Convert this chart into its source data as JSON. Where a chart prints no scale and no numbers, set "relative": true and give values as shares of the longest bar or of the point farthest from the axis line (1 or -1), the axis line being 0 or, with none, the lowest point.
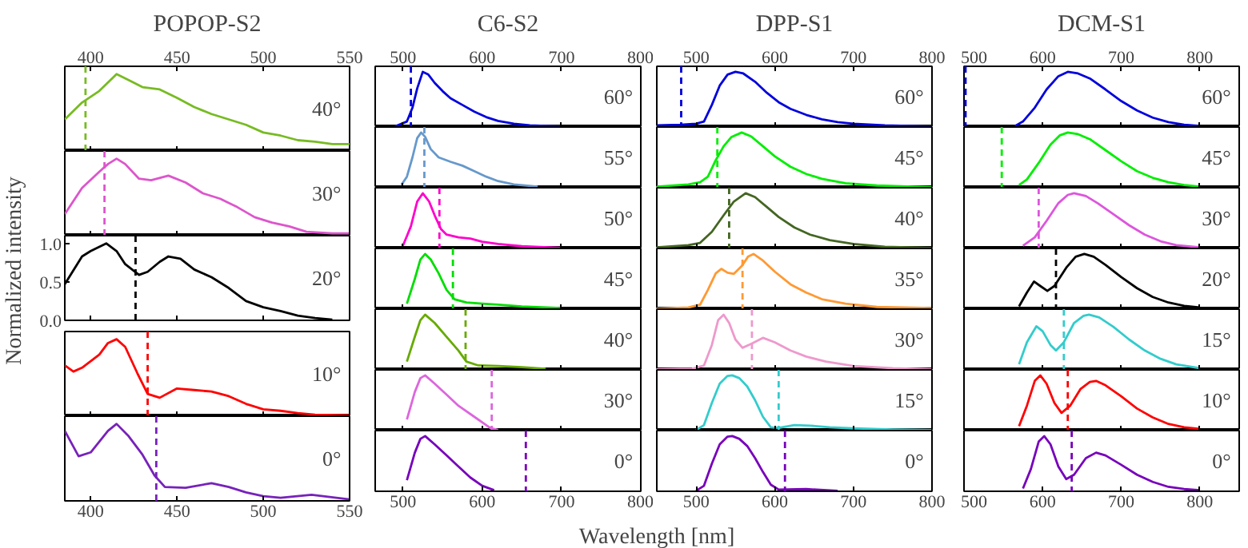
{
  "chart_data": [
    {
      "type": "line",
      "title": "POPOP-S2",
      "relative": true,
      "xlim": [
        385,
        550
      ],
      "xticks": [
        400,
        450,
        500,
        550
      ],
      "annotations": [
        "40°"
      ],
      "x": [
        385,
        395,
        405,
        415,
        422,
        430,
        440,
        450,
        460,
        470,
        480,
        490,
        500,
        510,
        520,
        530,
        540,
        550
      ],
      "series": [
        {
          "color": "#77bb22",
          "values": [
            0.41,
            0.63,
            0.78,
            1.0,
            0.92,
            0.83,
            0.8,
            0.69,
            0.57,
            0.48,
            0.41,
            0.34,
            0.24,
            0.2,
            0.14,
            0.12,
            0.09,
            0.09
          ]
        }
      ],
      "ref_lines": [
        {
          "axis": "x",
          "value": 397,
          "color": "#77bb22",
          "line_style": "dashed"
        }
      ]
    },
    {
      "type": "line",
      "relative": true,
      "xlim": [
        385,
        550
      ],
      "xticks": [
        400,
        450,
        500,
        550
      ],
      "tick_labels": false,
      "annotations": [
        "30°"
      ],
      "x": [
        385,
        395,
        405,
        410,
        415,
        420,
        428,
        435,
        445,
        455,
        465,
        475,
        485,
        495,
        505,
        515,
        525,
        540,
        550
      ],
      "series": [
        {
          "color": "#dd55cc",
          "values": [
            0.28,
            0.62,
            0.83,
            0.93,
            1.0,
            0.93,
            0.74,
            0.72,
            0.78,
            0.69,
            0.55,
            0.48,
            0.37,
            0.24,
            0.17,
            0.12,
            0.05,
            0.03,
            0.03
          ]
        }
      ],
      "ref_lines": [
        {
          "axis": "x",
          "value": 408,
          "color": "#dd55cc",
          "line_style": "dashed"
        }
      ]
    },
    {
      "type": "line",
      "ylabel": "Normalized intensity",
      "xlim": [
        385,
        550
      ],
      "xticks": [
        400,
        450,
        500,
        550
      ],
      "ylim": [
        0,
        1.1
      ],
      "yticks": [
        {
          "value": 0,
          "label": "0.0"
        },
        {
          "value": 0.5,
          "label": "0.5"
        },
        {
          "value": 1,
          "label": "1.0"
        }
      ],
      "tick_labels": "y",
      "annotations": [
        "20°"
      ],
      "x": [
        385,
        395,
        400,
        409,
        415,
        420,
        428,
        433,
        440,
        445,
        452,
        460,
        470,
        480,
        490,
        500,
        510,
        520,
        530,
        540
      ],
      "series": [
        {
          "color": "#000000",
          "values": [
            0.47,
            0.83,
            0.9,
            1.0,
            0.9,
            0.73,
            0.59,
            0.63,
            0.76,
            0.83,
            0.8,
            0.66,
            0.56,
            0.42,
            0.25,
            0.17,
            0.12,
            0.06,
            0.03,
            0.01
          ]
        }
      ],
      "ref_lines": [
        {
          "axis": "x",
          "value": 426,
          "color": "#000000",
          "line_style": "dashed"
        }
      ]
    },
    {
      "type": "line",
      "relative": true,
      "xlim": [
        385,
        550
      ],
      "xticks": [
        400,
        450,
        500,
        550
      ],
      "tick_labels": false,
      "annotations": [
        "10°"
      ],
      "x": [
        385,
        390,
        395,
        405,
        410,
        415,
        420,
        427,
        433,
        440,
        450,
        460,
        470,
        480,
        490,
        500,
        510,
        520,
        530,
        550
      ],
      "series": [
        {
          "color": "#ff0000",
          "values": [
            0.66,
            0.58,
            0.63,
            0.8,
            0.95,
            1.0,
            0.9,
            0.56,
            0.29,
            0.24,
            0.36,
            0.34,
            0.32,
            0.26,
            0.16,
            0.09,
            0.07,
            0.04,
            0.02,
            0.01
          ]
        }
      ],
      "ref_lines": [
        {
          "axis": "x",
          "value": 433,
          "color": "#ff0000",
          "line_style": "dashed"
        }
      ]
    },
    {
      "type": "line",
      "relative": true,
      "xlim": [
        385,
        550
      ],
      "xticks": [
        400,
        450,
        500,
        550
      ],
      "annotations": [
        "0°"
      ],
      "x": [
        385,
        393,
        400,
        410,
        415,
        422,
        430,
        437,
        443,
        455,
        470,
        480,
        490,
        500,
        510,
        528,
        550
      ],
      "series": [
        {
          "color": "#7722bb",
          "values": [
            0.91,
            0.58,
            0.63,
            0.91,
            1.0,
            0.84,
            0.6,
            0.33,
            0.18,
            0.17,
            0.23,
            0.18,
            0.11,
            0.06,
            0.04,
            0.08,
            0.02
          ]
        }
      ],
      "ref_lines": [
        {
          "axis": "x",
          "value": 438,
          "color": "#7722bb",
          "line_style": "dashed"
        }
      ]
    },
    {
      "type": "line",
      "title": "C6-S2",
      "relative": true,
      "xlim": [
        465,
        800
      ],
      "xticks": [
        500,
        600,
        700,
        800
      ],
      "annotations": [
        "60°"
      ],
      "x": [
        490,
        505,
        512,
        518,
        525,
        532,
        540,
        550,
        560,
        575,
        590,
        605,
        620,
        640,
        660,
        700
      ],
      "series": [
        {
          "color": "#0000dd",
          "values": [
            0.01,
            0.1,
            0.35,
            0.7,
            1.0,
            0.95,
            0.8,
            0.65,
            0.52,
            0.4,
            0.28,
            0.18,
            0.11,
            0.06,
            0.03,
            0.01
          ]
        }
      ],
      "ref_lines": [
        {
          "axis": "x",
          "value": 510,
          "color": "#0000dd",
          "line_style": "dashed"
        }
      ]
    },
    {
      "type": "line",
      "relative": true,
      "xlim": [
        465,
        800
      ],
      "xticks": [
        500,
        600,
        700,
        800
      ],
      "tick_labels": false,
      "annotations": [
        "55°"
      ],
      "x": [
        498,
        505,
        512,
        518,
        523,
        528,
        535,
        545,
        560,
        575,
        590,
        605,
        620,
        640,
        670
      ],
      "series": [
        {
          "color": "#6699cc",
          "values": [
            0.05,
            0.2,
            0.55,
            0.9,
            1.0,
            0.92,
            0.7,
            0.55,
            0.47,
            0.4,
            0.3,
            0.2,
            0.12,
            0.06,
            0.02
          ]
        }
      ],
      "ref_lines": [
        {
          "axis": "x",
          "value": 527,
          "color": "#6699cc",
          "line_style": "dashed"
        }
      ]
    },
    {
      "type": "line",
      "relative": true,
      "xlim": [
        465,
        800
      ],
      "xticks": [
        500,
        600,
        700,
        800
      ],
      "tick_labels": false,
      "annotations": [
        "50°"
      ],
      "x": [
        500,
        510,
        518,
        525,
        533,
        540,
        548,
        555,
        570,
        585,
        600,
        620,
        650,
        700
      ],
      "series": [
        {
          "color": "#ff00cc",
          "values": [
            0.05,
            0.4,
            0.85,
            1.0,
            0.85,
            0.6,
            0.35,
            0.25,
            0.2,
            0.18,
            0.12,
            0.08,
            0.04,
            0.01
          ]
        }
      ],
      "ref_lines": [
        {
          "axis": "x",
          "value": 546,
          "color": "#ff00cc",
          "line_style": "dashed"
        }
      ]
    },
    {
      "type": "line",
      "relative": true,
      "xlim": [
        465,
        800
      ],
      "xticks": [
        500,
        600,
        700,
        800
      ],
      "tick_labels": false,
      "annotations": [
        "45°"
      ],
      "x": [
        505,
        515,
        522,
        528,
        535,
        545,
        555,
        565,
        580,
        600,
        620,
        650,
        700
      ],
      "series": [
        {
          "color": "#00dd00",
          "values": [
            0.1,
            0.55,
            0.9,
            1.0,
            0.9,
            0.65,
            0.35,
            0.18,
            0.12,
            0.1,
            0.08,
            0.05,
            0.02
          ]
        }
      ],
      "ref_lines": [
        {
          "axis": "x",
          "value": 563,
          "color": "#00dd00",
          "line_style": "dashed"
        }
      ]
    },
    {
      "type": "line",
      "relative": true,
      "xlim": [
        465,
        800
      ],
      "xticks": [
        500,
        600,
        700,
        800
      ],
      "tick_labels": false,
      "annotations": [
        "40°"
      ],
      "x": [
        505,
        515,
        522,
        528,
        540,
        555,
        570,
        580,
        595,
        620,
        650,
        680
      ],
      "series": [
        {
          "color": "#66aa00",
          "values": [
            0.15,
            0.6,
            0.9,
            1.0,
            0.85,
            0.6,
            0.35,
            0.15,
            0.08,
            0.07,
            0.05,
            0.02
          ]
        }
      ],
      "ref_lines": [
        {
          "axis": "x",
          "value": 579,
          "color": "#66aa00",
          "line_style": "dashed"
        }
      ]
    },
    {
      "type": "line",
      "relative": true,
      "xlim": [
        465,
        800
      ],
      "xticks": [
        500,
        600,
        700,
        800
      ],
      "tick_labels": false,
      "annotations": [
        "30°"
      ],
      "x": [
        505,
        515,
        522,
        528,
        540,
        555,
        570,
        590,
        610,
        620
      ],
      "series": [
        {
          "color": "#dd66dd",
          "values": [
            0.2,
            0.7,
            0.95,
            1.0,
            0.85,
            0.65,
            0.45,
            0.25,
            0.05,
            0.01
          ]
        }
      ],
      "ref_lines": [
        {
          "axis": "x",
          "value": 612,
          "color": "#dd66dd",
          "line_style": "dashed"
        }
      ]
    },
    {
      "type": "line",
      "relative": true,
      "xlabel": "Wavelength [nm]",
      "xlim": [
        465,
        800
      ],
      "xticks": [
        500,
        600,
        700,
        800
      ],
      "annotations": [
        "0°"
      ],
      "x": [
        505,
        515,
        522,
        528,
        540,
        555,
        570,
        585,
        600,
        615
      ],
      "series": [
        {
          "color": "#7700bb",
          "values": [
            0.2,
            0.7,
            0.95,
            1.0,
            0.85,
            0.65,
            0.45,
            0.25,
            0.1,
            0.02
          ]
        }
      ],
      "ref_lines": [
        {
          "axis": "x",
          "value": 655,
          "color": "#7700bb",
          "line_style": "dashed"
        }
      ]
    },
    {
      "type": "line",
      "title": "DPP-S1",
      "relative": true,
      "xlim": [
        450,
        800
      ],
      "xticks": [
        500,
        600,
        700,
        800
      ],
      "annotations": [
        "60°"
      ],
      "x": [
        450,
        480,
        500,
        510,
        520,
        530,
        540,
        550,
        560,
        575,
        590,
        605,
        620,
        640,
        660,
        680,
        700,
        740,
        800
      ],
      "series": [
        {
          "color": "#0000dd",
          "values": [
            0.03,
            0.04,
            0.06,
            0.1,
            0.4,
            0.75,
            0.95,
            1.0,
            0.97,
            0.82,
            0.62,
            0.45,
            0.33,
            0.22,
            0.14,
            0.09,
            0.06,
            0.03,
            0.01
          ]
        }
      ],
      "ref_lines": [
        {
          "axis": "x",
          "value": 481,
          "color": "#0000dd",
          "line_style": "dashed"
        }
      ]
    },
    {
      "type": "line",
      "relative": true,
      "xlim": [
        450,
        800
      ],
      "xticks": [
        500,
        600,
        700,
        800
      ],
      "tick_labels": false,
      "annotations": [
        "45°"
      ],
      "x": [
        450,
        490,
        505,
        515,
        525,
        535,
        545,
        558,
        570,
        585,
        600,
        620,
        640,
        660,
        690,
        730,
        800
      ],
      "series": [
        {
          "color": "#00ee00",
          "values": [
            0.02,
            0.06,
            0.1,
            0.2,
            0.5,
            0.75,
            0.92,
            1.0,
            0.93,
            0.75,
            0.57,
            0.38,
            0.25,
            0.16,
            0.08,
            0.04,
            0.01
          ]
        }
      ],
      "ref_lines": [
        {
          "axis": "x",
          "value": 527,
          "color": "#00ee00",
          "line_style": "dashed"
        }
      ]
    },
    {
      "type": "line",
      "relative": true,
      "xlim": [
        450,
        800
      ],
      "xticks": [
        500,
        600,
        700,
        800
      ],
      "tick_labels": false,
      "annotations": [
        "40°"
      ],
      "x": [
        450,
        490,
        505,
        520,
        535,
        548,
        563,
        575,
        590,
        605,
        625,
        645,
        670,
        700,
        740,
        800
      ],
      "series": [
        {
          "color": "#446622",
          "values": [
            0.02,
            0.06,
            0.1,
            0.3,
            0.6,
            0.85,
            1.0,
            0.93,
            0.75,
            0.57,
            0.38,
            0.25,
            0.15,
            0.08,
            0.03,
            0.01
          ]
        }
      ],
      "ref_lines": [
        {
          "axis": "x",
          "value": 542,
          "color": "#446622",
          "line_style": "dashed"
        }
      ]
    },
    {
      "type": "line",
      "relative": true,
      "xlim": [
        450,
        800
      ],
      "xticks": [
        500,
        600,
        700,
        800
      ],
      "tick_labels": false,
      "annotations": [
        "35°"
      ],
      "x": [
        450,
        490,
        505,
        515,
        525,
        532,
        540,
        548,
        558,
        566,
        573,
        585,
        600,
        620,
        640,
        660,
        690,
        730,
        800
      ],
      "series": [
        {
          "color": "#ff9933",
          "values": [
            0.01,
            0.03,
            0.08,
            0.35,
            0.65,
            0.73,
            0.66,
            0.64,
            0.78,
            0.95,
            1.0,
            0.88,
            0.68,
            0.45,
            0.3,
            0.18,
            0.1,
            0.04,
            0.02
          ]
        }
      ],
      "ref_lines": [
        {
          "axis": "x",
          "value": 559,
          "color": "#ff9933",
          "line_style": "dashed"
        }
      ]
    },
    {
      "type": "line",
      "relative": true,
      "xlim": [
        450,
        800
      ],
      "xticks": [
        500,
        600,
        700,
        800
      ],
      "tick_labels": false,
      "annotations": [
        "30°"
      ],
      "x": [
        450,
        495,
        510,
        520,
        528,
        535,
        542,
        550,
        559,
        570,
        585,
        600,
        620,
        640,
        665,
        700,
        750,
        800
      ],
      "series": [
        {
          "color": "#ee99cc",
          "values": [
            0.01,
            0.02,
            0.08,
            0.45,
            0.9,
            1.0,
            0.85,
            0.55,
            0.4,
            0.47,
            0.58,
            0.5,
            0.35,
            0.24,
            0.15,
            0.07,
            0.03,
            0.01
          ]
        }
      ],
      "ref_lines": [
        {
          "axis": "x",
          "value": 571,
          "color": "#ee99cc",
          "line_style": "dashed"
        }
      ]
    },
    {
      "type": "line",
      "relative": true,
      "xlim": [
        450,
        800
      ],
      "xticks": [
        500,
        600,
        700,
        800
      ],
      "tick_labels": false,
      "annotations": [
        "15°"
      ],
      "x": [
        500,
        510,
        520,
        530,
        540,
        546,
        555,
        565,
        575,
        585,
        595,
        605,
        625,
        645,
        670,
        700,
        750,
        800
      ],
      "series": [
        {
          "color": "#33cccc",
          "values": [
            0.01,
            0.1,
            0.5,
            0.85,
            0.99,
            1.0,
            0.95,
            0.8,
            0.55,
            0.25,
            0.06,
            0.05,
            0.1,
            0.09,
            0.06,
            0.04,
            0.02,
            0.01
          ]
        }
      ],
      "ref_lines": [
        {
          "axis": "x",
          "value": 605,
          "color": "#33cccc",
          "line_style": "dashed"
        }
      ]
    },
    {
      "type": "line",
      "relative": true,
      "xlim": [
        450,
        800
      ],
      "xticks": [
        500,
        600,
        700,
        800
      ],
      "annotations": [
        "0°"
      ],
      "x": [
        500,
        510,
        520,
        530,
        540,
        546,
        555,
        565,
        575,
        585,
        595,
        605,
        640,
        680
      ],
      "series": [
        {
          "color": "#7700bb",
          "values": [
            0.01,
            0.1,
            0.5,
            0.85,
            0.99,
            1.0,
            0.95,
            0.82,
            0.6,
            0.35,
            0.12,
            0.03,
            0.04,
            0.01
          ]
        }
      ],
      "ref_lines": [
        {
          "axis": "x",
          "value": 613,
          "color": "#7700bb",
          "line_style": "dashed"
        }
      ]
    },
    {
      "type": "line",
      "title": "DCM-S1",
      "relative": true,
      "xlim": [
        500,
        850
      ],
      "xticks": [
        500,
        600,
        700,
        800
      ],
      "annotations": [
        "60°"
      ],
      "x": [
        565,
        575,
        590,
        605,
        620,
        632,
        645,
        660,
        680,
        700,
        720,
        740,
        760,
        780,
        800
      ],
      "series": [
        {
          "color": "#0000dd",
          "values": [
            0.02,
            0.1,
            0.35,
            0.68,
            0.92,
            1.0,
            0.97,
            0.88,
            0.68,
            0.47,
            0.3,
            0.17,
            0.09,
            0.04,
            0.02
          ]
        }
      ],
      "ref_lines": [
        {
          "axis": "x",
          "value": 502,
          "color": "#0000dd",
          "line_style": "dashed"
        }
      ]
    },
    {
      "type": "line",
      "relative": true,
      "xlim": [
        500,
        850
      ],
      "xticks": [
        500,
        600,
        700,
        800
      ],
      "tick_labels": false,
      "annotations": [
        "45°"
      ],
      "x": [
        570,
        580,
        595,
        610,
        622,
        632,
        645,
        660,
        680,
        700,
        720,
        740,
        760,
        780,
        800
      ],
      "series": [
        {
          "color": "#00ee00",
          "values": [
            0.05,
            0.15,
            0.45,
            0.78,
            0.95,
            1.0,
            0.97,
            0.88,
            0.68,
            0.48,
            0.3,
            0.18,
            0.1,
            0.05,
            0.02
          ]
        }
      ],
      "ref_lines": [
        {
          "axis": "x",
          "value": 548,
          "color": "#00ee00",
          "line_style": "dashed"
        }
      ]
    },
    {
      "type": "line",
      "relative": true,
      "xlim": [
        500,
        850
      ],
      "xticks": [
        500,
        600,
        700,
        800
      ],
      "tick_labels": false,
      "annotations": [
        "30°"
      ],
      "x": [
        575,
        590,
        605,
        620,
        632,
        640,
        655,
        670,
        690,
        710,
        730,
        750,
        770,
        800
      ],
      "series": [
        {
          "color": "#dd55dd",
          "values": [
            0.05,
            0.2,
            0.5,
            0.82,
            0.97,
            1.0,
            0.95,
            0.82,
            0.62,
            0.42,
            0.25,
            0.13,
            0.06,
            0.02
          ]
        }
      ],
      "ref_lines": [
        {
          "axis": "x",
          "value": 595,
          "color": "#dd55dd",
          "line_style": "dashed"
        }
      ]
    },
    {
      "type": "line",
      "relative": true,
      "xlim": [
        500,
        850
      ],
      "xticks": [
        500,
        600,
        700,
        800
      ],
      "tick_labels": false,
      "annotations": [
        "20°"
      ],
      "x": [
        570,
        580,
        589,
        597,
        606,
        615,
        630,
        642,
        653,
        665,
        680,
        700,
        720,
        740,
        760,
        780,
        800
      ],
      "series": [
        {
          "color": "#000000",
          "values": [
            0.05,
            0.3,
            0.5,
            0.42,
            0.33,
            0.42,
            0.75,
            0.95,
            1.0,
            0.95,
            0.8,
            0.58,
            0.38,
            0.22,
            0.12,
            0.06,
            0.03
          ]
        }
      ],
      "ref_lines": [
        {
          "axis": "x",
          "value": 617,
          "color": "#000000",
          "line_style": "dashed"
        }
      ]
    },
    {
      "type": "line",
      "relative": true,
      "xlim": [
        500,
        850
      ],
      "xticks": [
        500,
        600,
        700,
        800
      ],
      "tick_labels": false,
      "annotations": [
        "15°"
      ],
      "x": [
        570,
        580,
        592,
        600,
        610,
        617,
        627,
        640,
        652,
        659,
        672,
        690,
        710,
        730,
        750,
        770,
        800
      ],
      "series": [
        {
          "color": "#33cccc",
          "values": [
            0.1,
            0.5,
            0.79,
            0.7,
            0.45,
            0.35,
            0.5,
            0.85,
            0.98,
            1.0,
            0.95,
            0.78,
            0.55,
            0.35,
            0.2,
            0.1,
            0.03
          ]
        }
      ],
      "ref_lines": [
        {
          "axis": "x",
          "value": 627,
          "color": "#33cccc",
          "line_style": "dashed"
        }
      ]
    },
    {
      "type": "line",
      "relative": true,
      "xlim": [
        500,
        850
      ],
      "xticks": [
        500,
        600,
        700,
        800
      ],
      "tick_labels": false,
      "annotations": [
        "10°"
      ],
      "x": [
        570,
        580,
        590,
        597,
        605,
        615,
        624,
        635,
        648,
        660,
        668,
        680,
        700,
        720,
        740,
        760,
        780,
        800
      ],
      "series": [
        {
          "color": "#ff0000",
          "values": [
            0.08,
            0.45,
            0.9,
            1.0,
            0.85,
            0.5,
            0.32,
            0.45,
            0.75,
            0.88,
            0.9,
            0.82,
            0.62,
            0.4,
            0.24,
            0.12,
            0.06,
            0.03
          ]
        }
      ],
      "ref_lines": [
        {
          "axis": "x",
          "value": 632,
          "color": "#ff0000",
          "line_style": "dashed"
        }
      ]
    },
    {
      "type": "line",
      "relative": true,
      "xlim": [
        500,
        850
      ],
      "xticks": [
        500,
        600,
        700,
        800
      ],
      "annotations": [
        "0°"
      ],
      "x": [
        575,
        585,
        595,
        602,
        610,
        620,
        630,
        640,
        655,
        668,
        680,
        700,
        720,
        740,
        760,
        780,
        800
      ],
      "series": [
        {
          "color": "#7700bb",
          "values": [
            0.05,
            0.4,
            0.9,
            1.0,
            0.85,
            0.45,
            0.22,
            0.3,
            0.6,
            0.7,
            0.65,
            0.48,
            0.3,
            0.17,
            0.08,
            0.04,
            0.02
          ]
        }
      ],
      "ref_lines": [
        {
          "axis": "x",
          "value": 637,
          "color": "#7700bb",
          "line_style": "dashed"
        }
      ]
    }
  ]
}
